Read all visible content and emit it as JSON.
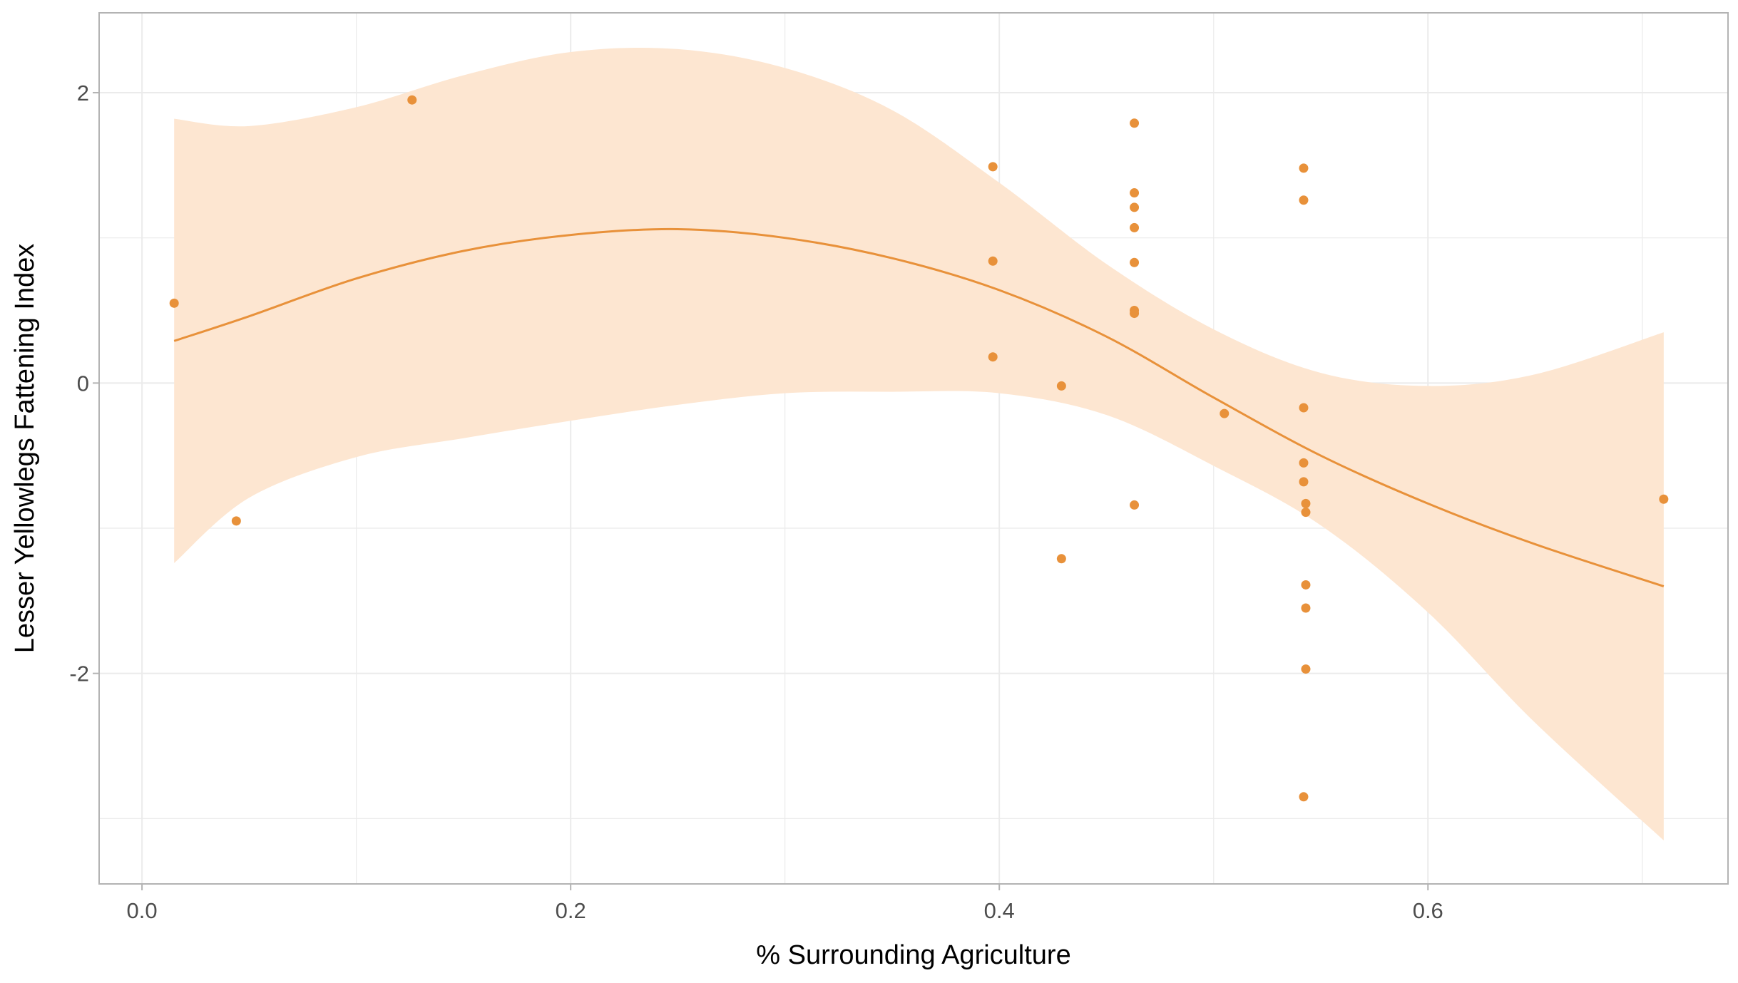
{
  "chart_data": {
    "type": "scatter",
    "title": "",
    "xlabel": "% Surrounding Agriculture",
    "ylabel": "Lesser Yellowlegs Fattening Index",
    "xlim": [
      -0.02,
      0.74
    ],
    "ylim": [
      -3.45,
      2.55
    ],
    "x_ticks": [
      0.0,
      0.2,
      0.4,
      0.6
    ],
    "x_tick_labels": [
      "0.0",
      "0.2",
      "0.4",
      "0.6"
    ],
    "x_minor_ticks": [
      0.1,
      0.3,
      0.5,
      0.7
    ],
    "y_ticks": [
      -2,
      0,
      2
    ],
    "y_tick_labels": [
      "-2",
      "0",
      "2"
    ],
    "y_minor_ticks": [
      -3,
      -1,
      1
    ],
    "grid": true,
    "legend": "none",
    "colors": {
      "points": "#e8913a",
      "smooth_line": "#e8913a",
      "confidence_band": "#fde6d1",
      "grid": "#ebebeb",
      "panel_border": "#b3b3b3"
    },
    "points": {
      "name": "observations",
      "x": [
        0.015,
        0.044,
        0.126,
        0.397,
        0.397,
        0.397,
        0.429,
        0.429,
        0.463,
        0.463,
        0.463,
        0.463,
        0.463,
        0.463,
        0.463,
        0.463,
        0.505,
        0.542,
        0.542,
        0.542,
        0.542,
        0.542,
        0.543,
        0.543,
        0.543,
        0.543,
        0.543,
        0.542,
        0.71
      ],
      "y": [
        0.55,
        -0.95,
        1.95,
        1.49,
        0.84,
        0.18,
        -0.02,
        -1.21,
        1.79,
        1.31,
        1.21,
        1.07,
        0.83,
        0.5,
        0.48,
        -0.84,
        -0.21,
        1.48,
        1.26,
        -0.17,
        -0.55,
        -0.68,
        -0.83,
        -0.89,
        -1.39,
        -1.55,
        -1.97,
        -2.85,
        -0.8
      ]
    },
    "smooth": {
      "name": "fitted curve with 95% confidence band",
      "x": [
        0.015,
        0.05,
        0.1,
        0.15,
        0.2,
        0.25,
        0.3,
        0.35,
        0.4,
        0.45,
        0.5,
        0.55,
        0.6,
        0.65,
        0.71
      ],
      "y": [
        0.29,
        0.46,
        0.72,
        0.91,
        1.02,
        1.06,
        1.0,
        0.86,
        0.64,
        0.32,
        -0.1,
        -0.5,
        -0.83,
        -1.11,
        -1.4
      ],
      "lower": [
        -1.24,
        -0.79,
        -0.51,
        -0.38,
        -0.26,
        -0.15,
        -0.07,
        -0.06,
        -0.07,
        -0.22,
        -0.57,
        -0.98,
        -1.58,
        -2.34,
        -3.15
      ],
      "upper": [
        1.82,
        1.77,
        1.9,
        2.12,
        2.28,
        2.3,
        2.17,
        1.88,
        1.38,
        0.82,
        0.37,
        0.07,
        -0.02,
        0.06,
        0.35
      ]
    }
  }
}
